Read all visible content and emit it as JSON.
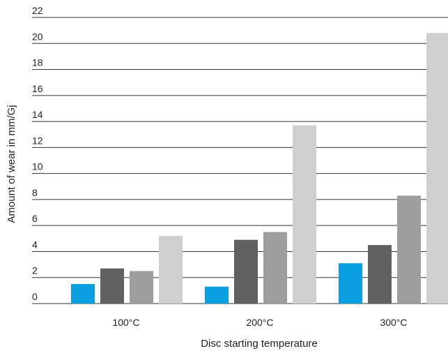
{
  "chart_data": {
    "type": "bar",
    "categories": [
      "100°C",
      "200°C",
      "300°C"
    ],
    "series": [
      {
        "color": "#0aa0e0",
        "values": [
          1.5,
          1.3,
          3.1
        ]
      },
      {
        "color": "#606060",
        "values": [
          2.7,
          4.9,
          4.5
        ]
      },
      {
        "color": "#9e9e9e",
        "values": [
          2.5,
          5.5,
          8.3
        ]
      },
      {
        "color": "#cfcfcf",
        "values": [
          5.2,
          13.7,
          20.8
        ]
      }
    ],
    "yticks": [
      "0",
      "2",
      "4",
      "6",
      "8",
      "10",
      "12",
      "14",
      "16",
      "18",
      "20",
      "22"
    ],
    "ylim": [
      0,
      22
    ],
    "xlabel": "Disc starting temperature",
    "ylabel": "Amount of wear in mm/Gj",
    "grid": true,
    "legend": "none"
  }
}
